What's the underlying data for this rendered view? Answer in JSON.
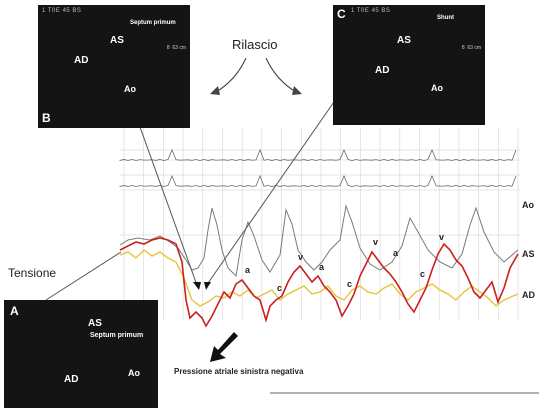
{
  "figure": {
    "release_label": "Rilascio",
    "tension_label": "Tensione",
    "caption_negative_pressure": "Pressione atriale sinistra negativa",
    "right_labels": [
      "Ao",
      "AS",
      "AD"
    ],
    "wave_labels": [
      "a",
      "c",
      "v",
      "a",
      "c",
      "v",
      "a",
      "c",
      "v"
    ]
  },
  "panels": {
    "A": {
      "letter": "A",
      "labels": [
        "AS",
        "Septum primum",
        "AD",
        "Ao"
      ]
    },
    "B": {
      "letter": "B",
      "labels": [
        "AS",
        "Septum primum",
        "AD",
        "Ao"
      ]
    },
    "C": {
      "letter": "C",
      "labels": [
        "AS",
        "Shunt",
        "AD",
        "Ao"
      ]
    }
  },
  "colors": {
    "la_trace": "#cc1f1f",
    "ra_trace": "#e8c23a",
    "ao_trace": "#7a7a7a",
    "grid": "#d6d6d6",
    "echo_bg": "#141414"
  }
}
